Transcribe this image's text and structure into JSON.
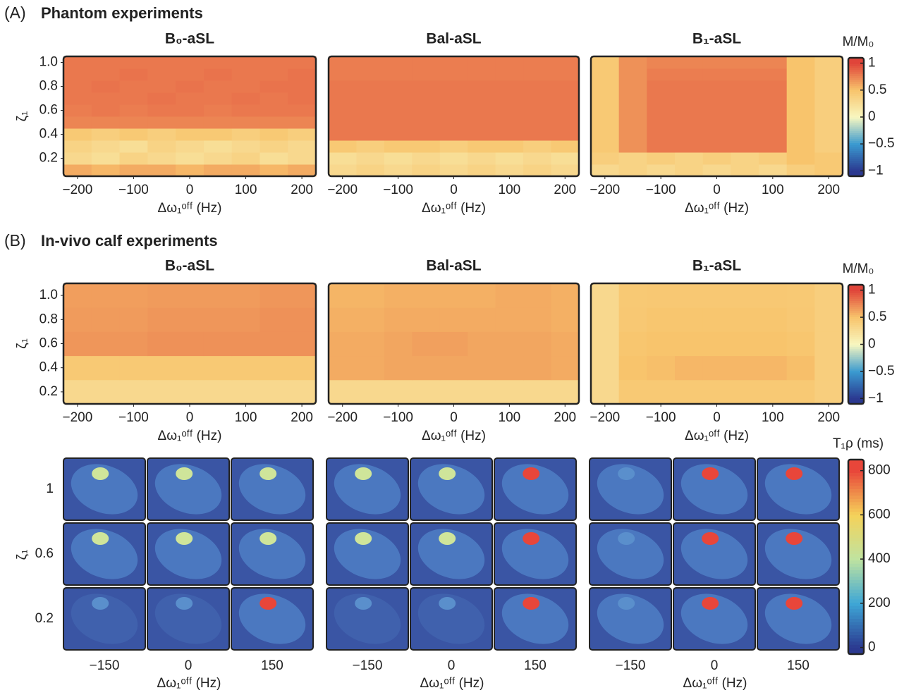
{
  "sections": [
    {
      "label": "(A)",
      "title": "Phantom experiments"
    },
    {
      "label": "(B)",
      "title": "In-vivo calf experiments"
    }
  ],
  "chart_data": [
    {
      "type": "heatmap",
      "title": "B₀-aSL",
      "x_label": "Δω₁ᵒᶠᶠ (Hz)",
      "y_label": "ζ₁",
      "x": [
        -200,
        -150,
        -100,
        -50,
        0,
        50,
        100,
        150,
        200
      ],
      "y": [
        0.1,
        0.2,
        0.3,
        0.4,
        0.5,
        0.6,
        0.7,
        0.8,
        0.9,
        1.0
      ],
      "values": [
        [
          0.6,
          0.55,
          0.6,
          0.6,
          0.55,
          0.6,
          0.6,
          0.55,
          0.6
        ],
        [
          0.3,
          0.25,
          0.35,
          0.3,
          0.25,
          0.3,
          0.35,
          0.25,
          0.3
        ],
        [
          0.35,
          0.3,
          0.25,
          0.35,
          0.3,
          0.25,
          0.3,
          0.35,
          0.3
        ],
        [
          0.45,
          0.4,
          0.45,
          0.4,
          0.45,
          0.45,
          0.4,
          0.45,
          0.4
        ],
        [
          0.75,
          0.75,
          0.75,
          0.75,
          0.75,
          0.75,
          0.75,
          0.75,
          0.75
        ],
        [
          0.78,
          0.8,
          0.78,
          0.8,
          0.8,
          0.78,
          0.8,
          0.8,
          0.8
        ],
        [
          0.8,
          0.8,
          0.8,
          0.82,
          0.8,
          0.8,
          0.82,
          0.8,
          0.82
        ],
        [
          0.8,
          0.82,
          0.8,
          0.8,
          0.82,
          0.8,
          0.8,
          0.82,
          0.82
        ],
        [
          0.8,
          0.8,
          0.82,
          0.8,
          0.8,
          0.82,
          0.8,
          0.8,
          0.82
        ],
        [
          0.8,
          0.8,
          0.8,
          0.8,
          0.8,
          0.8,
          0.8,
          0.8,
          0.8
        ]
      ],
      "xlim": [
        -225,
        225
      ],
      "ylim": [
        0.05,
        1.05
      ],
      "xticks": [
        {
          "value": -200,
          "label": "−200"
        },
        {
          "value": -100,
          "label": "−100"
        },
        0,
        100,
        200
      ],
      "yticks": [
        0.2,
        0.4,
        0.6,
        0.8,
        {
          "value": 1,
          "label": "1.0"
        }
      ]
    },
    {
      "type": "heatmap",
      "title": "Bal-aSL",
      "x_label": "Δω₁ᵒᶠᶠ (Hz)",
      "x": [
        -200,
        -150,
        -100,
        -50,
        0,
        50,
        100,
        150,
        200
      ],
      "y": [
        0.1,
        0.2,
        0.3,
        0.4,
        0.5,
        0.6,
        0.7,
        0.8,
        0.9,
        1.0
      ],
      "values": [
        [
          0.3,
          0.35,
          0.3,
          0.35,
          0.3,
          0.35,
          0.3,
          0.35,
          0.3
        ],
        [
          0.25,
          0.3,
          0.25,
          0.3,
          0.25,
          0.3,
          0.25,
          0.3,
          0.25
        ],
        [
          0.45,
          0.4,
          0.45,
          0.45,
          0.4,
          0.45,
          0.45,
          0.4,
          0.45
        ],
        [
          0.8,
          0.8,
          0.8,
          0.8,
          0.8,
          0.8,
          0.8,
          0.8,
          0.8
        ],
        [
          0.8,
          0.8,
          0.8,
          0.8,
          0.8,
          0.8,
          0.8,
          0.8,
          0.8
        ],
        [
          0.8,
          0.8,
          0.8,
          0.8,
          0.8,
          0.8,
          0.8,
          0.8,
          0.8
        ],
        [
          0.8,
          0.8,
          0.8,
          0.8,
          0.8,
          0.8,
          0.8,
          0.8,
          0.8
        ],
        [
          0.8,
          0.8,
          0.8,
          0.8,
          0.8,
          0.8,
          0.8,
          0.8,
          0.8
        ],
        [
          0.78,
          0.78,
          0.78,
          0.78,
          0.78,
          0.78,
          0.78,
          0.78,
          0.78
        ],
        [
          0.78,
          0.78,
          0.78,
          0.78,
          0.78,
          0.78,
          0.78,
          0.78,
          0.78
        ]
      ],
      "xlim": [
        -225,
        225
      ],
      "ylim": [
        0.05,
        1.05
      ],
      "xticks": [
        {
          "value": -200,
          "label": "−200"
        },
        {
          "value": -100,
          "label": "−100"
        },
        0,
        100,
        200
      ]
    },
    {
      "type": "heatmap",
      "title": "B₁-aSL",
      "x_label": "Δω₁ᵒᶠᶠ (Hz)",
      "x": [
        -200,
        -150,
        -100,
        -50,
        0,
        50,
        100,
        150,
        200
      ],
      "y": [
        0.1,
        0.2,
        0.3,
        0.4,
        0.5,
        0.6,
        0.7,
        0.8,
        0.9,
        1.0
      ],
      "values": [
        [
          0.3,
          0.35,
          0.3,
          0.35,
          0.3,
          0.35,
          0.3,
          0.4,
          0.45
        ],
        [
          0.4,
          0.35,
          0.4,
          0.35,
          0.4,
          0.35,
          0.4,
          0.5,
          0.45
        ],
        [
          0.45,
          0.7,
          0.8,
          0.8,
          0.8,
          0.8,
          0.8,
          0.5,
          0.4
        ],
        [
          0.45,
          0.7,
          0.8,
          0.8,
          0.8,
          0.8,
          0.8,
          0.5,
          0.4
        ],
        [
          0.45,
          0.7,
          0.8,
          0.8,
          0.8,
          0.8,
          0.8,
          0.5,
          0.4
        ],
        [
          0.45,
          0.7,
          0.8,
          0.8,
          0.8,
          0.8,
          0.8,
          0.5,
          0.4
        ],
        [
          0.45,
          0.7,
          0.8,
          0.8,
          0.8,
          0.8,
          0.8,
          0.5,
          0.4
        ],
        [
          0.45,
          0.7,
          0.8,
          0.8,
          0.8,
          0.8,
          0.8,
          0.5,
          0.4
        ],
        [
          0.45,
          0.7,
          0.78,
          0.78,
          0.78,
          0.78,
          0.78,
          0.5,
          0.4
        ],
        [
          0.45,
          0.7,
          0.75,
          0.75,
          0.75,
          0.75,
          0.75,
          0.5,
          0.4
        ]
      ],
      "xlim": [
        -225,
        225
      ],
      "ylim": [
        0.05,
        1.05
      ],
      "xticks": [
        {
          "value": -200,
          "label": "−200"
        },
        {
          "value": -100,
          "label": "−100"
        },
        0,
        100,
        200
      ],
      "colorbar": {
        "label": "M/M₀",
        "lim": [
          -1.1,
          1.1
        ],
        "ticks": [
          {
            "value": -1,
            "label": "−1"
          },
          {
            "value": -0.5,
            "label": "−0.5"
          },
          0,
          0.5,
          1
        ]
      }
    },
    {
      "type": "heatmap",
      "title": "B₀-aSL",
      "x_label": "Δω₁ᵒᶠᶠ (Hz)",
      "y_label": "ζ₁",
      "x": [
        -200,
        -150,
        -100,
        -50,
        0,
        50,
        100,
        150,
        200
      ],
      "y": [
        0.2,
        0.4,
        0.6,
        0.8,
        1.0
      ],
      "values": [
        [
          0.3,
          0.3,
          0.3,
          0.3,
          0.3,
          0.3,
          0.3,
          0.3,
          0.3
        ],
        [
          0.45,
          0.45,
          0.45,
          0.45,
          0.45,
          0.45,
          0.45,
          0.45,
          0.45
        ],
        [
          0.68,
          0.68,
          0.68,
          0.7,
          0.7,
          0.7,
          0.7,
          0.7,
          0.7
        ],
        [
          0.66,
          0.66,
          0.66,
          0.68,
          0.68,
          0.68,
          0.68,
          0.7,
          0.7
        ],
        [
          0.65,
          0.65,
          0.65,
          0.66,
          0.66,
          0.66,
          0.66,
          0.68,
          0.68
        ]
      ],
      "xlim": [
        -225,
        225
      ],
      "ylim": [
        0.1,
        1.1
      ],
      "xticks": [
        {
          "value": -200,
          "label": "−200"
        },
        {
          "value": -100,
          "label": "−100"
        },
        0,
        100,
        200
      ],
      "yticks": [
        0.2,
        0.4,
        0.6,
        0.8,
        {
          "value": 1,
          "label": "1.0"
        }
      ]
    },
    {
      "type": "heatmap",
      "title": "Bal-aSL",
      "x_label": "Δω₁ᵒᶠᶠ (Hz)",
      "x": [
        -200,
        -150,
        -100,
        -50,
        0,
        50,
        100,
        150,
        200
      ],
      "y": [
        0.2,
        0.4,
        0.6,
        0.8,
        1.0
      ],
      "values": [
        [
          0.3,
          0.3,
          0.3,
          0.3,
          0.3,
          0.3,
          0.3,
          0.3,
          0.3
        ],
        [
          0.6,
          0.6,
          0.62,
          0.62,
          0.62,
          0.62,
          0.62,
          0.62,
          0.6
        ],
        [
          0.6,
          0.6,
          0.62,
          0.64,
          0.64,
          0.62,
          0.62,
          0.62,
          0.6
        ],
        [
          0.58,
          0.58,
          0.6,
          0.6,
          0.6,
          0.6,
          0.6,
          0.6,
          0.58
        ],
        [
          0.56,
          0.56,
          0.58,
          0.58,
          0.58,
          0.58,
          0.6,
          0.6,
          0.58
        ]
      ],
      "xlim": [
        -225,
        225
      ],
      "ylim": [
        0.1,
        1.1
      ],
      "xticks": [
        {
          "value": -200,
          "label": "−200"
        },
        {
          "value": -100,
          "label": "−100"
        },
        0,
        100,
        200
      ]
    },
    {
      "type": "heatmap",
      "title": "B₁-aSL",
      "x_label": "Δω₁ᵒᶠᶠ (Hz)",
      "x": [
        -200,
        -150,
        -100,
        -50,
        0,
        50,
        100,
        150,
        200
      ],
      "y": [
        0.2,
        0.4,
        0.6,
        0.8,
        1.0
      ],
      "values": [
        [
          0.3,
          0.45,
          0.45,
          0.45,
          0.45,
          0.45,
          0.45,
          0.45,
          0.4
        ],
        [
          0.3,
          0.5,
          0.52,
          0.55,
          0.55,
          0.55,
          0.55,
          0.52,
          0.4
        ],
        [
          0.3,
          0.48,
          0.5,
          0.5,
          0.5,
          0.5,
          0.5,
          0.48,
          0.4
        ],
        [
          0.3,
          0.46,
          0.48,
          0.48,
          0.48,
          0.48,
          0.48,
          0.46,
          0.4
        ],
        [
          0.3,
          0.45,
          0.46,
          0.46,
          0.46,
          0.46,
          0.46,
          0.45,
          0.4
        ]
      ],
      "xlim": [
        -225,
        225
      ],
      "ylim": [
        0.1,
        1.1
      ],
      "xticks": [
        {
          "value": -200,
          "label": "−200"
        },
        {
          "value": -100,
          "label": "−100"
        },
        0,
        100,
        200
      ],
      "colorbar": {
        "label": "M/M₀",
        "lim": [
          -1.1,
          1.1
        ],
        "ticks": [
          {
            "value": -1,
            "label": "−1"
          },
          {
            "value": -0.5,
            "label": "−0.5"
          },
          0,
          0.5,
          1
        ]
      }
    }
  ],
  "image_grid": {
    "y_label": "ζ₁",
    "row_labels": [
      "1",
      "0.6",
      "0.2"
    ],
    "col_labels": [
      "−150",
      "0",
      "150"
    ],
    "x_label": "Δω₁ᵒᶠᶠ (Hz)",
    "colorbar": {
      "label": "T₁ρ (ms)",
      "lim": [
        -30,
        850
      ],
      "ticks": [
        0,
        200,
        400,
        600,
        800
      ]
    }
  }
}
